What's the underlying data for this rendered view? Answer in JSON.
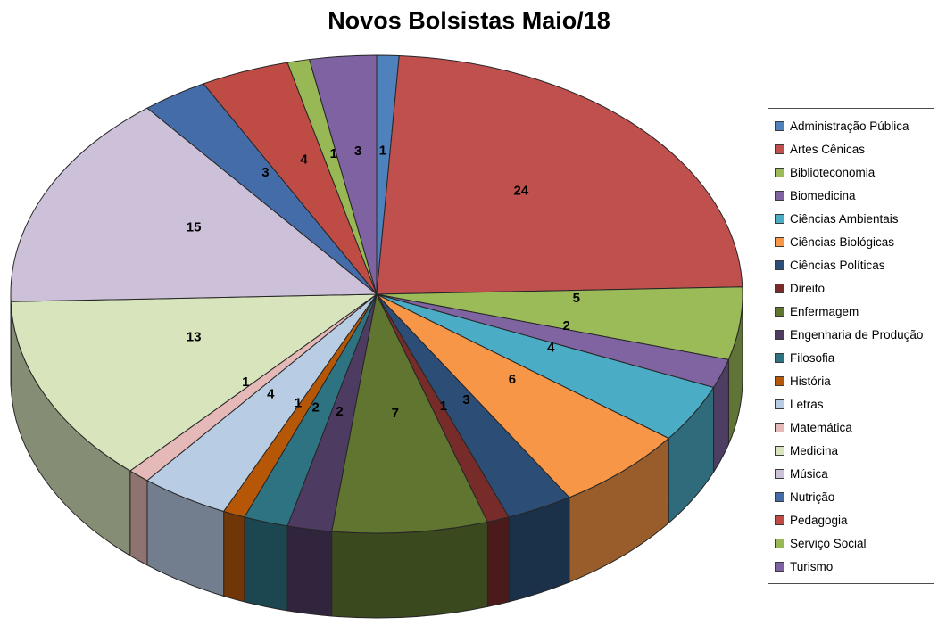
{
  "chart_data": {
    "type": "pie",
    "style": "3d",
    "title": "Novos Bolsistas Maio/18",
    "legend_position": "right",
    "labels_shown": "value",
    "categories": [
      "Administração Pública",
      "Artes Cênicas",
      "Biblioteconomia",
      "Biomedicina",
      "Ciências Ambientais",
      "Ciências Biológicas",
      "Ciências Políticas",
      "Direito",
      "Enfermagem",
      "Engenharia de Produção",
      "Filosofia",
      "História",
      "Letras",
      "Matemática",
      "Medicina",
      "Música",
      "Nutrição",
      "Pedagogia",
      "Serviço Social",
      "Turismo"
    ],
    "values": [
      1,
      24,
      5,
      2,
      4,
      6,
      3,
      1,
      7,
      2,
      2,
      1,
      4,
      1,
      13,
      15,
      3,
      4,
      1,
      3
    ],
    "colors": [
      "#4F81BD",
      "#C0504D",
      "#9BBB59",
      "#8064A2",
      "#4BACC6",
      "#F79646",
      "#2C4D75",
      "#772C2A",
      "#5F7530",
      "#4D3B62",
      "#2D7382",
      "#B65708",
      "#B8CCE4",
      "#E5B9B7",
      "#D7E4BC",
      "#CCC1D9",
      "#446CA9",
      "#BF4B45",
      "#98B855",
      "#7E62A1"
    ]
  }
}
